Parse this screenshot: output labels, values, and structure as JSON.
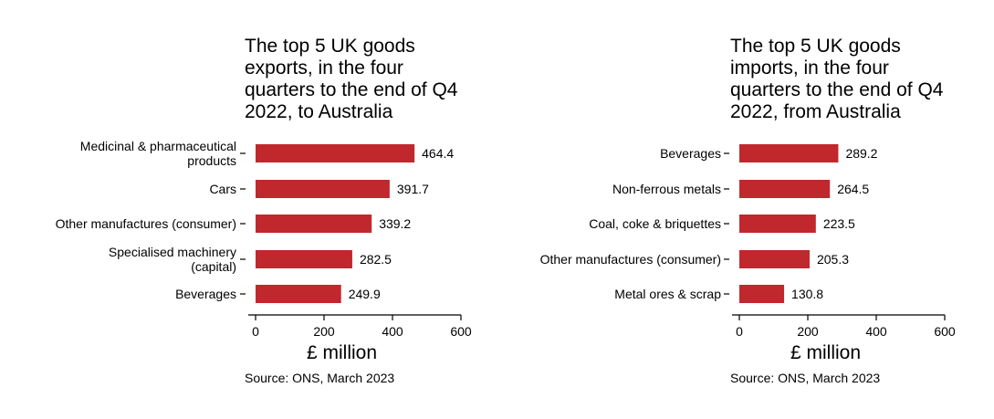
{
  "chart_data": [
    {
      "type": "bar",
      "orientation": "horizontal",
      "title": [
        "The top 5 UK goods",
        "exports, in the four",
        "quarters to the end of Q4",
        "2022, to Australia"
      ],
      "categories": [
        [
          "Medicinal & pharmaceutical",
          "products"
        ],
        [
          "Cars"
        ],
        [
          "Other manufactures (consumer)"
        ],
        [
          "Specialised machinery",
          "(capital)"
        ],
        [
          "Beverages"
        ]
      ],
      "values": [
        464.4,
        391.7,
        339.2,
        282.5,
        249.9
      ],
      "value_labels": [
        "464.4",
        "391.7",
        "339.2",
        "282.5",
        "249.9"
      ],
      "xlabel": "£ million",
      "xlim": [
        0,
        600
      ],
      "xticks": [
        "0",
        "200",
        "400",
        "600"
      ],
      "source": "Source: ONS, March 2023",
      "bar_color": "#c0282e",
      "grid": false
    },
    {
      "type": "bar",
      "orientation": "horizontal",
      "title": [
        "The top 5 UK goods",
        "imports, in the four",
        "quarters to the end of Q4",
        "2022, from Australia"
      ],
      "categories": [
        [
          "Beverages"
        ],
        [
          "Non-ferrous metals"
        ],
        [
          "Coal, coke & briquettes"
        ],
        [
          "Other manufactures (consumer)"
        ],
        [
          "Metal ores & scrap"
        ]
      ],
      "values": [
        289.2,
        264.5,
        223.5,
        205.3,
        130.8
      ],
      "value_labels": [
        "289.2",
        "264.5",
        "223.5",
        "205.3",
        "130.8"
      ],
      "xlabel": "£ million",
      "xlim": [
        0,
        600
      ],
      "xticks": [
        "0",
        "200",
        "400",
        "600"
      ],
      "source": "Source: ONS, March 2023",
      "bar_color": "#c0282e",
      "grid": false
    }
  ]
}
